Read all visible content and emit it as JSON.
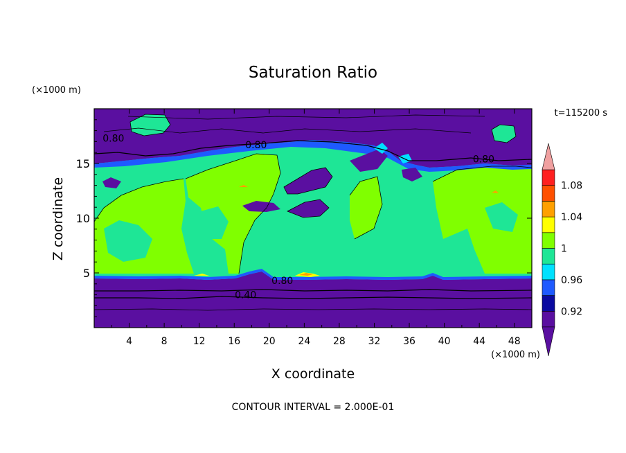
{
  "chart_data": {
    "type": "heatmap",
    "title": "Saturation Ratio",
    "time_label": "t=115200 s",
    "xlabel": "X coordinate",
    "ylabel": "Z coordinate",
    "x_unit": "(×1000 m)",
    "y_unit": "(×1000 m)",
    "xlim": [
      0,
      50
    ],
    "ylim": [
      0,
      20
    ],
    "x_ticks": [
      4,
      8,
      12,
      16,
      20,
      24,
      28,
      32,
      36,
      40,
      44,
      48
    ],
    "y_ticks": [
      5,
      10,
      15
    ],
    "footer": "CONTOUR INTERVAL = 2.000E-01",
    "colorbar": {
      "levels": [
        0.9,
        0.92,
        0.94,
        0.96,
        0.98,
        1.0,
        1.02,
        1.04,
        1.06,
        1.08,
        1.1
      ],
      "tick_labels": [
        "0.92",
        "0.96",
        "1",
        "1.04",
        "1.08"
      ],
      "colors": [
        "#5a0fa0",
        "#0a0aa0",
        "#1e5aff",
        "#00e1ff",
        "#1ee696",
        "#80ff00",
        "#ffff00",
        "#ffa000",
        "#ff5000",
        "#ff2020"
      ],
      "under_color": "#5a0fa0",
      "over_color": "#f0a0a0"
    },
    "contour_labels": [
      {
        "text": "0.80",
        "x": 2.2,
        "z": 17.3
      },
      {
        "text": "0.80",
        "x": 18.5,
        "z": 16.7
      },
      {
        "text": "0.80",
        "x": 44.5,
        "z": 15.4
      },
      {
        "text": "0.80",
        "x": 21.5,
        "z": 4.3
      },
      {
        "text": "0.40",
        "x": 17.3,
        "z": 3.0
      }
    ]
  }
}
